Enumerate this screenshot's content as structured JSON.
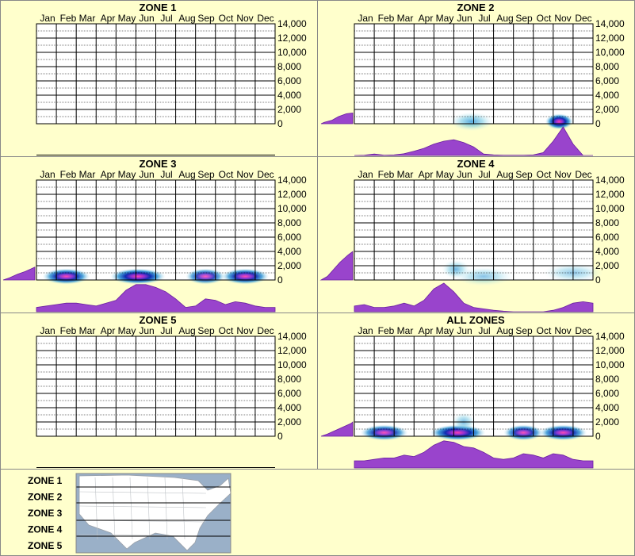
{
  "months": [
    "Jan",
    "Feb",
    "Mar",
    "Apr",
    "May",
    "Jun",
    "Jul",
    "Aug",
    "Sep",
    "Oct",
    "Nov",
    "Dec"
  ],
  "elevation_ticks": [
    "14,000",
    "12,000",
    "10,000",
    "8,000",
    "6,000",
    "4,000",
    "2,000",
    "0"
  ],
  "chart_data": [
    {
      "type": "heatmap",
      "title": "ZONE 1",
      "x": [
        "Jan",
        "Feb",
        "Mar",
        "Apr",
        "May",
        "Jun",
        "Jul",
        "Aug",
        "Sep",
        "Oct",
        "Nov",
        "Dec"
      ],
      "ylim": [
        0,
        14000
      ],
      "elevation_profile": [],
      "month_profile": [],
      "heat_blobs": []
    },
    {
      "type": "heatmap",
      "title": "ZONE 2",
      "x": [
        "Jan",
        "Feb",
        "Mar",
        "Apr",
        "May",
        "Jun",
        "Jul",
        "Aug",
        "Sep",
        "Oct",
        "Nov",
        "Dec"
      ],
      "ylim": [
        0,
        14000
      ],
      "elevation_profile": [
        [
          0,
          0
        ],
        [
          200,
          0.1
        ],
        [
          500,
          0.35
        ],
        [
          1000,
          0.55
        ],
        [
          1400,
          0.8
        ],
        [
          1500,
          1
        ]
      ],
      "month_profile": [
        0,
        0.01,
        0.05,
        0.01,
        0.02,
        0.06,
        0.15,
        0.25,
        0.4,
        0.5,
        0.55,
        0.45,
        0.3,
        0.05,
        0.02,
        0.01,
        0.01,
        0.01,
        0.02,
        0.1,
        0.5,
        1,
        0.4,
        0,
        0
      ],
      "heat_blobs": [
        {
          "month": 5.4,
          "elev": 300,
          "spread": 1.1,
          "intensity": 0.35
        },
        {
          "month": 9.8,
          "elev": 300,
          "spread": 0.7,
          "intensity": 0.8
        }
      ]
    },
    {
      "type": "heatmap",
      "title": "ZONE 3",
      "x": [
        "Jan",
        "Feb",
        "Mar",
        "Apr",
        "May",
        "Jun",
        "Jul",
        "Aug",
        "Sep",
        "Oct",
        "Nov",
        "Dec"
      ],
      "ylim": [
        0,
        14000
      ],
      "elevation_profile": [
        [
          0,
          0
        ],
        [
          300,
          0.2
        ],
        [
          800,
          0.45
        ],
        [
          1200,
          0.7
        ],
        [
          1600,
          0.9
        ],
        [
          1800,
          1
        ]
      ],
      "month_profile": [
        0.15,
        0.2,
        0.25,
        0.3,
        0.3,
        0.25,
        0.2,
        0.3,
        0.4,
        0.75,
        0.95,
        0.95,
        0.85,
        0.7,
        0.45,
        0.15,
        0.2,
        0.45,
        0.4,
        0.25,
        0.35,
        0.3,
        0.2,
        0.15,
        0.15
      ],
      "heat_blobs": [
        {
          "month": 1.0,
          "elev": 500,
          "spread": 1.2,
          "intensity": 0.55
        },
        {
          "month": 4.6,
          "elev": 500,
          "spread": 1.4,
          "intensity": 1.0
        },
        {
          "month": 8.0,
          "elev": 500,
          "spread": 1.0,
          "intensity": 0.45
        },
        {
          "month": 10.0,
          "elev": 500,
          "spread": 1.2,
          "intensity": 0.55
        }
      ]
    },
    {
      "type": "heatmap",
      "title": "ZONE 4",
      "x": [
        "Jan",
        "Feb",
        "Mar",
        "Apr",
        "May",
        "Jun",
        "Jul",
        "Aug",
        "Sep",
        "Oct",
        "Nov",
        "Dec"
      ],
      "ylim": [
        0,
        14000
      ],
      "elevation_profile": [
        [
          0,
          0
        ],
        [
          500,
          0.2
        ],
        [
          1500,
          0.4
        ],
        [
          2500,
          0.6
        ],
        [
          3500,
          0.85
        ],
        [
          4000,
          1
        ]
      ],
      "month_profile": [
        0.2,
        0.25,
        0.15,
        0.15,
        0.2,
        0.3,
        0.2,
        0.4,
        0.8,
        1,
        0.7,
        0.3,
        0.15,
        0.1,
        0.05,
        0.02,
        0.0,
        0.0,
        0.0,
        0.0,
        0.05,
        0.15,
        0.3,
        0.35,
        0.3
      ],
      "heat_blobs": [
        {
          "month": 4.6,
          "elev": 1500,
          "spread": 0.7,
          "intensity": 0.25
        },
        {
          "month": 6.0,
          "elev": 500,
          "spread": 1.5,
          "intensity": 0.12
        },
        {
          "month": 10.5,
          "elev": 1000,
          "spread": 1.5,
          "intensity": 0.1
        }
      ]
    },
    {
      "type": "heatmap",
      "title": "ZONE 5",
      "x": [
        "Jan",
        "Feb",
        "Mar",
        "Apr",
        "May",
        "Jun",
        "Jul",
        "Aug",
        "Sep",
        "Oct",
        "Nov",
        "Dec"
      ],
      "ylim": [
        0,
        14000
      ],
      "elevation_profile": [],
      "month_profile": [],
      "heat_blobs": []
    },
    {
      "type": "heatmap",
      "title": "ALL ZONES",
      "x": [
        "Jan",
        "Feb",
        "Mar",
        "Apr",
        "May",
        "Jun",
        "Jul",
        "Aug",
        "Sep",
        "Oct",
        "Nov",
        "Dec"
      ],
      "ylim": [
        0,
        14000
      ],
      "elevation_profile": [
        [
          0,
          0
        ],
        [
          300,
          0.2
        ],
        [
          800,
          0.45
        ],
        [
          1300,
          0.7
        ],
        [
          1800,
          0.95
        ],
        [
          2000,
          1
        ]
      ],
      "month_profile": [
        0.25,
        0.25,
        0.3,
        0.35,
        0.35,
        0.45,
        0.4,
        0.55,
        0.8,
        0.95,
        0.9,
        0.75,
        0.7,
        0.55,
        0.35,
        0.3,
        0.35,
        0.5,
        0.45,
        0.35,
        0.5,
        0.45,
        0.3,
        0.25,
        0.25
      ],
      "heat_blobs": [
        {
          "month": 1.0,
          "elev": 500,
          "spread": 1.2,
          "intensity": 0.5
        },
        {
          "month": 4.7,
          "elev": 500,
          "spread": 1.4,
          "intensity": 1.0
        },
        {
          "month": 8.0,
          "elev": 500,
          "spread": 1.0,
          "intensity": 0.5
        },
        {
          "month": 10.0,
          "elev": 500,
          "spread": 1.2,
          "intensity": 0.55
        },
        {
          "month": 5.0,
          "elev": 2000,
          "spread": 0.6,
          "intensity": 0.2
        }
      ]
    }
  ],
  "legend": {
    "zones": [
      "ZONE 1",
      "ZONE 2",
      "ZONE 3",
      "ZONE 4",
      "ZONE 5"
    ]
  },
  "colors": {
    "background": "#ffffcc",
    "profile_fill": "#9944cc",
    "profile_stroke": "#6a1fa0",
    "map_water": "#9ab0c8",
    "map_land": "#ffffff"
  }
}
